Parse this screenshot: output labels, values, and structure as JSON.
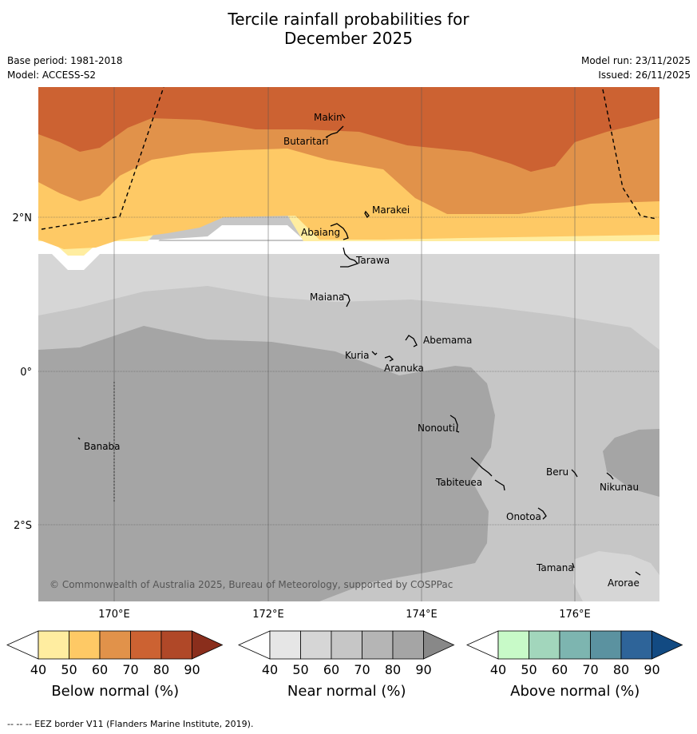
{
  "title_line1": "Tercile rainfall probabilities for",
  "title_line2": "December 2025",
  "meta": {
    "base_period": "Base period: 1981-2018",
    "model": "Model: ACCESS-S2",
    "model_run": "Model run: 23/11/2025",
    "issued": "Issued: 26/11/2025"
  },
  "axes": {
    "lat_labels": [
      "2°N",
      "0°",
      "2°S"
    ],
    "lon_labels": [
      "170°E",
      "172°E",
      "174°E",
      "176°E"
    ]
  },
  "places": [
    "Makin",
    "Butaritari",
    "Marakei",
    "Abaiang",
    "Tarawa",
    "Maiana",
    "Abemama",
    "Kuria",
    "Aranuka",
    "Banaba",
    "Nonouti",
    "Beru",
    "Tabiteuea",
    "Nikunau",
    "Onotoa",
    "Tamana",
    "Arorae"
  ],
  "copyright": "© Commonwealth of Australia 2025, Bureau of Meteorology, supported by COSPPac",
  "colorbars": {
    "ticks": [
      "40",
      "50",
      "60",
      "70",
      "80",
      "90"
    ],
    "below": {
      "label": "Below normal (%)",
      "colors": [
        "#ffeda0",
        "#fec965",
        "#e1924a",
        "#cc6232",
        "#b04828",
        "#8a2e1c"
      ]
    },
    "near": {
      "label": "Near normal (%)",
      "colors": [
        "#e6e6e6",
        "#d6d6d6",
        "#c6c6c6",
        "#b5b5b5",
        "#a5a5a5",
        "#888888"
      ]
    },
    "above": {
      "label": "Above normal (%)",
      "colors": [
        "#c8fac8",
        "#a2d6bc",
        "#7db5b0",
        "#5b92a0",
        "#2e6499",
        "#124a82"
      ]
    }
  },
  "footer": "--  --  -- EEZ border V11 (Flanders Marine Institute, 2019)."
}
